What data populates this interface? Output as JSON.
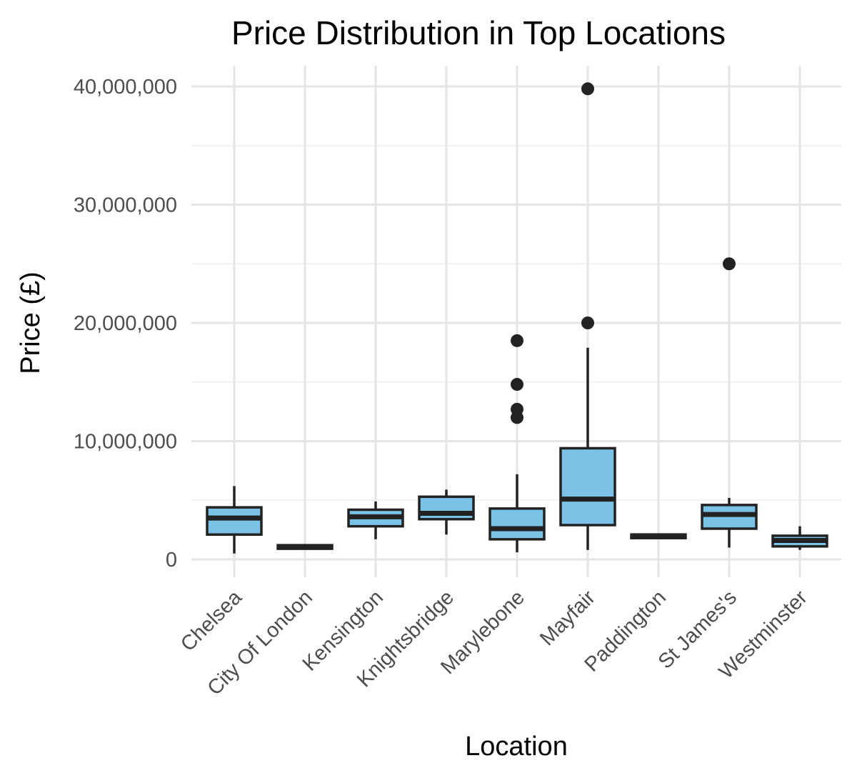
{
  "chart_data": {
    "type": "box",
    "title": "Price Distribution in Top Locations",
    "xlabel": "Location",
    "ylabel": "Price (£)",
    "categories": [
      "Chelsea",
      "City Of London",
      "Kensington",
      "Knightsbridge",
      "Marylebone",
      "Mayfair",
      "Paddington",
      "St James's",
      "Westminster"
    ],
    "y_ticks": [
      0,
      10000000,
      20000000,
      30000000,
      40000000
    ],
    "y_tick_labels": [
      "0",
      "10,000,000",
      "20,000,000",
      "30,000,000",
      "40,000,000"
    ],
    "ylim": [
      -1600000,
      41800000
    ],
    "grid": true,
    "legend": "none",
    "fill_color": "#7ac3e6",
    "stroke_color": "#222222",
    "boxes": [
      {
        "category": "Chelsea",
        "whisker_low": 500000,
        "q1": 2100000,
        "median": 3500000,
        "q3": 4400000,
        "whisker_high": 6200000,
        "outliers": []
      },
      {
        "category": "City Of London",
        "whisker_low": 900000,
        "q1": 900000,
        "median": 1050000,
        "q3": 1200000,
        "whisker_high": 1200000,
        "outliers": []
      },
      {
        "category": "Kensington",
        "whisker_low": 1700000,
        "q1": 2800000,
        "median": 3600000,
        "q3": 4200000,
        "whisker_high": 4900000,
        "outliers": []
      },
      {
        "category": "Knightsbridge",
        "whisker_low": 2100000,
        "q1": 3400000,
        "median": 3900000,
        "q3": 5300000,
        "whisker_high": 5900000,
        "outliers": []
      },
      {
        "category": "Marylebone",
        "whisker_low": 600000,
        "q1": 1700000,
        "median": 2600000,
        "q3": 4300000,
        "whisker_high": 7200000,
        "outliers": [
          12000000,
          12700000,
          14800000,
          18500000
        ]
      },
      {
        "category": "Mayfair",
        "whisker_low": 800000,
        "q1": 2900000,
        "median": 5100000,
        "q3": 9400000,
        "whisker_high": 17900000,
        "outliers": [
          20000000,
          39800000
        ]
      },
      {
        "category": "Paddington",
        "whisker_low": 1800000,
        "q1": 1800000,
        "median": 2000000,
        "q3": 2100000,
        "whisker_high": 2100000,
        "outliers": []
      },
      {
        "category": "St James's",
        "whisker_low": 1000000,
        "q1": 2600000,
        "median": 3800000,
        "q3": 4600000,
        "whisker_high": 5200000,
        "outliers": [
          25000000
        ]
      },
      {
        "category": "Westminster",
        "whisker_low": 800000,
        "q1": 1100000,
        "median": 1600000,
        "q3": 2000000,
        "whisker_high": 2800000,
        "outliers": []
      }
    ]
  }
}
